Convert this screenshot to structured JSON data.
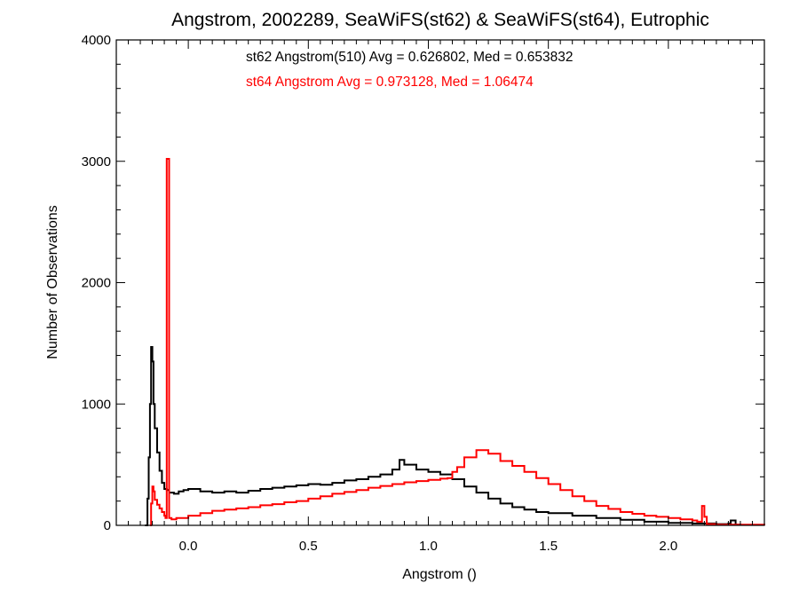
{
  "chart_data": {
    "type": "line",
    "title": "Angstrom, 2002289, SeaWiFS(st62) & SeaWiFS(st64), Eutrophic",
    "xlabel": "Angstrom ()",
    "ylabel": "Number of Observations",
    "xlim": [
      -0.3,
      2.4
    ],
    "ylim": [
      0,
      4000
    ],
    "x_ticks": [
      0.0,
      0.5,
      1.0,
      1.5,
      2.0
    ],
    "x_tick_labels": [
      "0.0",
      "0.5",
      "1.0",
      "1.5",
      "2.0"
    ],
    "y_ticks": [
      0,
      1000,
      2000,
      3000,
      4000
    ],
    "y_tick_labels": [
      "0",
      "1000",
      "2000",
      "3000",
      "4000"
    ],
    "grid": false,
    "annotations": [
      {
        "text": "st62 Angstrom(510) Avg = 0.626802, Med = 0.653832",
        "color": "#000000"
      },
      {
        "text": "st64 Angstrom Avg = 0.973128, Med = 1.06474",
        "color": "#ff0000"
      }
    ],
    "series": [
      {
        "color": "#000000",
        "points": [
          [
            -0.18,
            0
          ],
          [
            -0.17,
            220
          ],
          [
            -0.165,
            560
          ],
          [
            -0.16,
            1000
          ],
          [
            -0.155,
            1470
          ],
          [
            -0.15,
            1350
          ],
          [
            -0.145,
            1000
          ],
          [
            -0.14,
            800
          ],
          [
            -0.13,
            600
          ],
          [
            -0.12,
            450
          ],
          [
            -0.11,
            350
          ],
          [
            -0.1,
            300
          ],
          [
            -0.09,
            290
          ],
          [
            -0.08,
            270
          ],
          [
            -0.06,
            260
          ],
          [
            -0.04,
            280
          ],
          [
            -0.02,
            290
          ],
          [
            0.0,
            300
          ],
          [
            0.05,
            280
          ],
          [
            0.1,
            270
          ],
          [
            0.15,
            280
          ],
          [
            0.2,
            270
          ],
          [
            0.25,
            285
          ],
          [
            0.3,
            300
          ],
          [
            0.35,
            310
          ],
          [
            0.4,
            320
          ],
          [
            0.45,
            330
          ],
          [
            0.5,
            340
          ],
          [
            0.55,
            335
          ],
          [
            0.6,
            350
          ],
          [
            0.65,
            370
          ],
          [
            0.7,
            380
          ],
          [
            0.75,
            400
          ],
          [
            0.8,
            420
          ],
          [
            0.85,
            460
          ],
          [
            0.88,
            540
          ],
          [
            0.9,
            500
          ],
          [
            0.95,
            460
          ],
          [
            1.0,
            440
          ],
          [
            1.05,
            420
          ],
          [
            1.1,
            380
          ],
          [
            1.15,
            320
          ],
          [
            1.2,
            270
          ],
          [
            1.25,
            220
          ],
          [
            1.3,
            180
          ],
          [
            1.35,
            150
          ],
          [
            1.4,
            130
          ],
          [
            1.45,
            110
          ],
          [
            1.5,
            100
          ],
          [
            1.6,
            80
          ],
          [
            1.7,
            60
          ],
          [
            1.8,
            45
          ],
          [
            1.9,
            30
          ],
          [
            2.0,
            20
          ],
          [
            2.1,
            15
          ],
          [
            2.2,
            10
          ],
          [
            2.25,
            15
          ],
          [
            2.26,
            40
          ],
          [
            2.28,
            5
          ],
          [
            2.3,
            0
          ]
        ]
      },
      {
        "color": "#ff0000",
        "points": [
          [
            -0.16,
            0
          ],
          [
            -0.155,
            180
          ],
          [
            -0.15,
            320
          ],
          [
            -0.145,
            280
          ],
          [
            -0.14,
            210
          ],
          [
            -0.13,
            170
          ],
          [
            -0.12,
            140
          ],
          [
            -0.11,
            110
          ],
          [
            -0.1,
            80
          ],
          [
            -0.095,
            60
          ],
          [
            -0.09,
            3020
          ],
          [
            -0.085,
            3020
          ],
          [
            -0.08,
            60
          ],
          [
            -0.07,
            50
          ],
          [
            -0.05,
            60
          ],
          [
            0.0,
            80
          ],
          [
            0.05,
            100
          ],
          [
            0.1,
            120
          ],
          [
            0.15,
            130
          ],
          [
            0.2,
            140
          ],
          [
            0.25,
            150
          ],
          [
            0.3,
            165
          ],
          [
            0.35,
            175
          ],
          [
            0.4,
            190
          ],
          [
            0.45,
            200
          ],
          [
            0.5,
            220
          ],
          [
            0.55,
            240
          ],
          [
            0.6,
            260
          ],
          [
            0.65,
            275
          ],
          [
            0.7,
            290
          ],
          [
            0.75,
            310
          ],
          [
            0.8,
            325
          ],
          [
            0.85,
            340
          ],
          [
            0.9,
            355
          ],
          [
            0.95,
            365
          ],
          [
            1.0,
            375
          ],
          [
            1.05,
            385
          ],
          [
            1.08,
            390
          ],
          [
            1.1,
            440
          ],
          [
            1.12,
            480
          ],
          [
            1.15,
            560
          ],
          [
            1.2,
            620
          ],
          [
            1.25,
            590
          ],
          [
            1.3,
            530
          ],
          [
            1.35,
            490
          ],
          [
            1.4,
            440
          ],
          [
            1.45,
            390
          ],
          [
            1.5,
            340
          ],
          [
            1.55,
            290
          ],
          [
            1.6,
            240
          ],
          [
            1.65,
            200
          ],
          [
            1.7,
            160
          ],
          [
            1.75,
            135
          ],
          [
            1.8,
            110
          ],
          [
            1.85,
            95
          ],
          [
            1.9,
            80
          ],
          [
            1.95,
            70
          ],
          [
            2.0,
            60
          ],
          [
            2.05,
            50
          ],
          [
            2.1,
            40
          ],
          [
            2.12,
            30
          ],
          [
            2.14,
            160
          ],
          [
            2.15,
            70
          ],
          [
            2.16,
            10
          ],
          [
            2.2,
            5
          ],
          [
            2.4,
            0
          ]
        ]
      }
    ]
  }
}
